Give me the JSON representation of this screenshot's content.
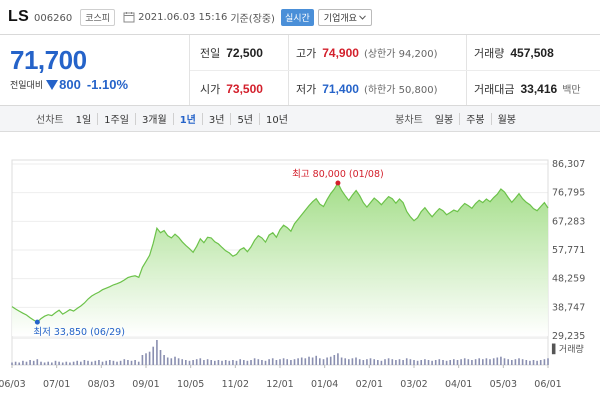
{
  "header": {
    "stock_name": "LS",
    "stock_code": "006260",
    "market": "코스피",
    "datetime": "2021.06.03 15:16",
    "basis": "기준(장중)",
    "live_label": "실시간",
    "overview_label": "기업개요"
  },
  "price": {
    "current": "71,700",
    "change_label": "전일대비",
    "change": "800",
    "change_pct": "-1.10%"
  },
  "stats": {
    "prev_close_label": "전일",
    "prev_close": "72,500",
    "high_label": "고가",
    "high": "74,900",
    "upper_limit": "(상한가 94,200)",
    "volume_label": "거래량",
    "volume": "457,508",
    "open_label": "시가",
    "open": "73,500",
    "low_label": "저가",
    "low": "71,400",
    "lower_limit": "(하한가 50,800)",
    "amount_label": "거래대금",
    "amount": "33,416",
    "amount_unit": "백만"
  },
  "toolbar": {
    "line_chart_label": "선차트",
    "line_periods": [
      "1일",
      "1주일",
      "3개월",
      "1년",
      "3년",
      "5년",
      "10년"
    ],
    "active_period": "1년",
    "candle_chart_label": "봉차트",
    "candle_periods": [
      "일봉",
      "주봉",
      "월봉"
    ]
  },
  "colors": {
    "accent": "#2563c9",
    "up": "#d31f2b",
    "area_top": "#9fdc83",
    "area_bottom": "#ffffff",
    "line": "#6cc24a"
  },
  "chart_data": {
    "type": "area",
    "ylim": [
      29235,
      86307
    ],
    "y_ticks": [
      "86,307",
      "76,795",
      "67,283",
      "57,771",
      "48,259",
      "38,747",
      "29,235"
    ],
    "x_ticks": [
      "06/03",
      "07/01",
      "08/03",
      "09/01",
      "10/05",
      "11/02",
      "12/01",
      "01/04",
      "02/01",
      "03/02",
      "04/01",
      "05/03",
      "06/01"
    ],
    "max_annotation": "최고 80,000 (01/08)",
    "min_annotation": "최저 33,850 (06/29)",
    "volume_label": "거래량",
    "price_series": [
      39000,
      38200,
      37500,
      36800,
      36200,
      35300,
      34500,
      33850,
      35000,
      35800,
      36300,
      36000,
      37000,
      37800,
      36500,
      37200,
      38000,
      37500,
      38400,
      39200,
      40200,
      41500,
      42500,
      43200,
      43800,
      44600,
      45100,
      45600,
      46200,
      46600,
      47100,
      47800,
      48600,
      49000,
      49200,
      48700,
      52000,
      54000,
      56000,
      60000,
      65000,
      63500,
      64200,
      62500,
      61800,
      63000,
      62000,
      60500,
      59300,
      58200,
      57000,
      59000,
      61500,
      60200,
      62000,
      61800,
      60500,
      59800,
      58600,
      57500,
      56800,
      55700,
      56300,
      57900,
      58500,
      57200,
      58800,
      61000,
      62500,
      61800,
      60400,
      62700,
      63500,
      62000,
      64500,
      66000,
      65200,
      64000,
      66500,
      68000,
      69500,
      71000,
      72500,
      73800,
      74800,
      73000,
      72200,
      74500,
      76500,
      78000,
      80000,
      77500,
      75800,
      74200,
      76000,
      77500,
      75800,
      73500,
      72000,
      73500,
      75000,
      74000,
      72800,
      74200,
      75500,
      74800,
      73300,
      74700,
      73500,
      70500,
      68800,
      67500,
      68500,
      70500,
      71800,
      70200,
      68800,
      70200,
      71500,
      70800,
      69500,
      70200,
      71000,
      70500,
      72000,
      73200,
      72500,
      71600,
      73200,
      74300,
      73500,
      74700,
      73800,
      75200,
      76300,
      78000,
      77000,
      75200,
      73600,
      75000,
      76500,
      74800,
      73600,
      72800,
      71500,
      70800,
      72200,
      73500,
      71700
    ],
    "volume_series": [
      3,
      4,
      3,
      5,
      4,
      6,
      5,
      7,
      4,
      3,
      4,
      3,
      5,
      4,
      3,
      4,
      3,
      4,
      5,
      4,
      6,
      5,
      4,
      5,
      6,
      4,
      5,
      6,
      5,
      4,
      5,
      7,
      6,
      5,
      6,
      4,
      12,
      14,
      16,
      22,
      30,
      18,
      12,
      9,
      8,
      10,
      8,
      7,
      6,
      5,
      6,
      7,
      8,
      6,
      7,
      6,
      5,
      6,
      5,
      6,
      5,
      6,
      5,
      7,
      6,
      5,
      6,
      8,
      7,
      6,
      5,
      7,
      8,
      6,
      7,
      8,
      7,
      6,
      7,
      8,
      9,
      8,
      10,
      9,
      11,
      8,
      7,
      9,
      10,
      12,
      14,
      9,
      8,
      7,
      8,
      9,
      7,
      6,
      7,
      8,
      7,
      6,
      5,
      7,
      8,
      7,
      6,
      7,
      6,
      8,
      7,
      6,
      5,
      6,
      7,
      6,
      5,
      6,
      7,
      6,
      5,
      6,
      7,
      6,
      7,
      8,
      7,
      6,
      7,
      8,
      7,
      8,
      7,
      8,
      9,
      10,
      8,
      7,
      6,
      7,
      8,
      7,
      6,
      5,
      6,
      5,
      6,
      7,
      8
    ]
  }
}
